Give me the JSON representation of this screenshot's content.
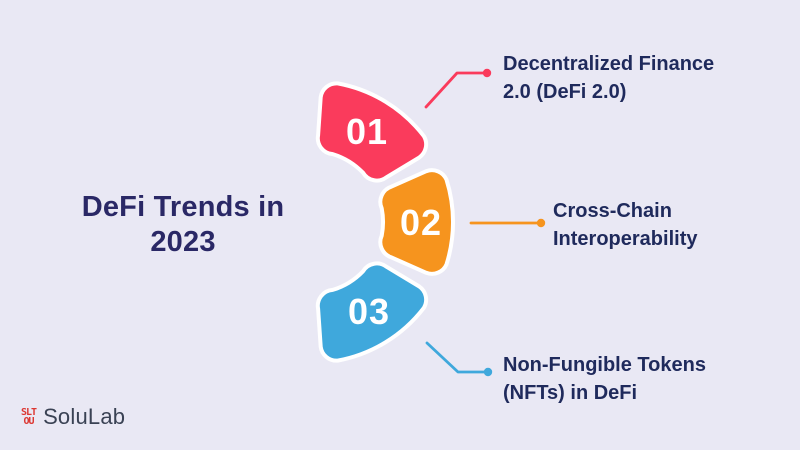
{
  "title": {
    "text": "DeFi Trends in\n2023"
  },
  "segments": [
    {
      "number": "01",
      "color": "#FA3B5C",
      "label": "Decentralized Finance\n2.0 (DeFi 2.0)"
    },
    {
      "number": "02",
      "color": "#F6941E",
      "label": "Cross-Chain\nInteroperability"
    },
    {
      "number": "03",
      "color": "#3FA8DC",
      "label": "Non-Fungible Tokens\n(NFTs) in DeFi"
    }
  ],
  "footer": {
    "brand": "SoluLab",
    "logo_text_top": "SLT",
    "logo_text_bottom": "OU"
  },
  "colors": {
    "background": "#E9E8F4",
    "title_text": "#2A2866",
    "label_text": "#1F2A5C",
    "segment_number_text": "#FFFFFF",
    "segment_outline": "#FFFFFF",
    "logo_mark": "#DC3732",
    "brand_text": "#3A4254"
  }
}
